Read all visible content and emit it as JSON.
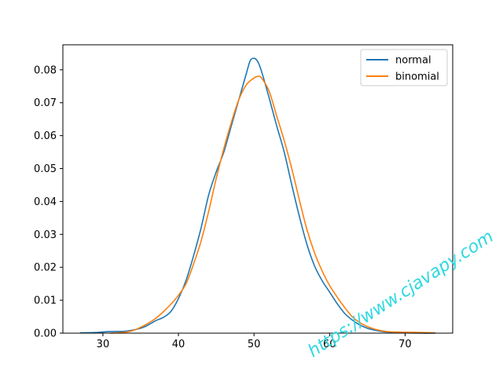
{
  "chart_data": {
    "type": "line",
    "title": "",
    "xlabel": "",
    "ylabel": "",
    "xlim": [
      24.7,
      76.3
    ],
    "ylim": [
      0,
      0.0876
    ],
    "xticks": [
      30,
      40,
      50,
      60,
      70
    ],
    "yticks": [
      0.0,
      0.01,
      0.02,
      0.03,
      0.04,
      0.05,
      0.06,
      0.07,
      0.08
    ],
    "ytick_labels": [
      "0.00",
      "0.01",
      "0.02",
      "0.03",
      "0.04",
      "0.05",
      "0.06",
      "0.07",
      "0.08"
    ],
    "grid": false,
    "legend_position": "top-right",
    "series": [
      {
        "name": "normal",
        "color": "#1f77b4",
        "x": [
          27,
          29,
          31,
          33,
          35,
          36,
          37,
          38,
          39,
          40,
          41,
          42,
          43,
          44,
          45,
          46,
          47,
          48,
          49,
          49.5,
          50,
          50.5,
          51,
          52,
          53,
          54,
          55,
          56,
          57,
          58,
          59,
          60,
          61,
          62,
          63,
          64,
          65,
          66,
          67,
          68,
          70,
          72,
          74
        ],
        "y": [
          0.0001,
          0.0002,
          0.0005,
          0.0006,
          0.0015,
          0.0025,
          0.0038,
          0.0048,
          0.0066,
          0.0105,
          0.016,
          0.0235,
          0.032,
          0.042,
          0.049,
          0.055,
          0.063,
          0.071,
          0.079,
          0.0828,
          0.0835,
          0.0825,
          0.0795,
          0.0715,
          0.063,
          0.055,
          0.045,
          0.0355,
          0.027,
          0.0205,
          0.016,
          0.0125,
          0.009,
          0.006,
          0.004,
          0.0025,
          0.0015,
          0.0009,
          0.0005,
          0.0003,
          0.0001,
          0.0,
          0.0
        ]
      },
      {
        "name": "binomial",
        "color": "#ff7f0e",
        "x": [
          31,
          33,
          34,
          35,
          36,
          37,
          38,
          39,
          40,
          41,
          42,
          43,
          44,
          45,
          46,
          47,
          48,
          49,
          50,
          50.5,
          51,
          52,
          53,
          54,
          55,
          56,
          57,
          58,
          59,
          60,
          61,
          62,
          63,
          64,
          65,
          66,
          67,
          68,
          70,
          72,
          74
        ],
        "y": [
          0.0,
          0.0003,
          0.0008,
          0.0018,
          0.003,
          0.0045,
          0.0065,
          0.0088,
          0.0115,
          0.015,
          0.021,
          0.028,
          0.037,
          0.047,
          0.056,
          0.064,
          0.071,
          0.0755,
          0.0775,
          0.078,
          0.0775,
          0.0735,
          0.066,
          0.0585,
          0.05,
          0.0405,
          0.0315,
          0.0245,
          0.019,
          0.0145,
          0.011,
          0.0078,
          0.005,
          0.0032,
          0.002,
          0.0012,
          0.0007,
          0.0004,
          0.0003,
          0.0002,
          0.0001
        ]
      }
    ]
  },
  "watermark": {
    "text": "https://www.cjavapy.com",
    "color": "#2ed8e0"
  }
}
